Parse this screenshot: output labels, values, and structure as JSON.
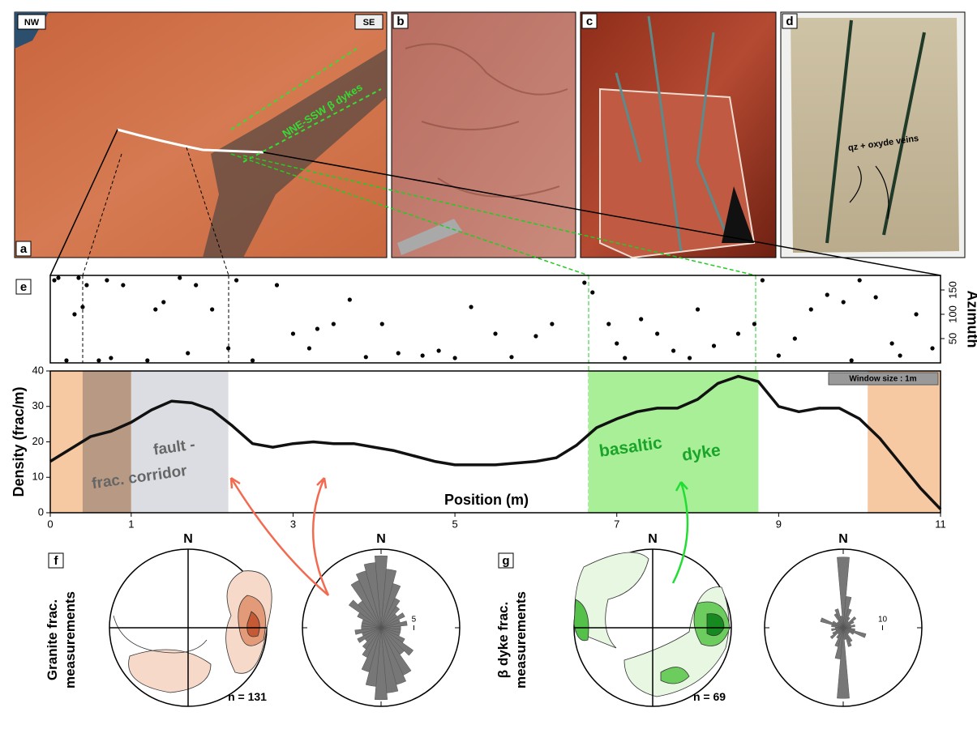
{
  "photos": {
    "a": {
      "letter": "a",
      "left_tag": "NW",
      "right_tag": "SE",
      "annotation": "NNE-SSW β dykes"
    },
    "b": {
      "letter": "b"
    },
    "c": {
      "letter": "c"
    },
    "d": {
      "letter": "d",
      "annotation": "qz + oxyde veins"
    }
  },
  "panel_e": {
    "letter": "e"
  },
  "chart_data": [
    {
      "type": "scatter",
      "ylabel": "Azimuth",
      "xlim": [
        0,
        11
      ],
      "ylim": [
        0,
        180
      ],
      "yticks": [
        50,
        100,
        150
      ],
      "color": "#000000",
      "x": [
        0.05,
        0.1,
        0.2,
        0.3,
        0.35,
        0.4,
        0.45,
        0.6,
        0.7,
        0.75,
        0.9,
        1.2,
        1.3,
        1.4,
        1.6,
        1.7,
        1.8,
        2.0,
        2.2,
        2.3,
        2.5,
        2.8,
        3.0,
        3.2,
        3.3,
        3.5,
        3.7,
        3.9,
        4.1,
        4.3,
        4.6,
        4.8,
        5.0,
        5.2,
        5.5,
        5.7,
        6.0,
        6.2,
        6.6,
        6.7,
        6.9,
        7.0,
        7.1,
        7.3,
        7.5,
        7.7,
        7.9,
        8.0,
        8.2,
        8.5,
        8.7,
        8.8,
        9.0,
        9.2,
        9.4,
        9.6,
        9.8,
        9.9,
        10.0,
        10.2,
        10.4,
        10.5,
        10.7,
        10.9
      ],
      "values": [
        170,
        175,
        5,
        100,
        175,
        115,
        160,
        5,
        170,
        10,
        160,
        5,
        110,
        125,
        175,
        20,
        160,
        110,
        30,
        170,
        5,
        160,
        60,
        30,
        70,
        80,
        130,
        12,
        80,
        20,
        15,
        25,
        10,
        115,
        60,
        12,
        55,
        80,
        165,
        145,
        80,
        40,
        10,
        90,
        60,
        25,
        10,
        110,
        35,
        60,
        80,
        170,
        15,
        50,
        110,
        140,
        125,
        5,
        170,
        135,
        40,
        15,
        100,
        30
      ]
    },
    {
      "type": "line",
      "xlabel": "Position (m)",
      "ylabel": "Density (frac/m)",
      "xlim": [
        0,
        11
      ],
      "ylim": [
        0,
        40
      ],
      "xticks": [
        0,
        1,
        3,
        5,
        7,
        9,
        11
      ],
      "yticks": [
        0,
        10,
        20,
        30,
        40
      ],
      "color": "#111111",
      "x": [
        0,
        0.25,
        0.5,
        0.75,
        1,
        1.25,
        1.5,
        1.75,
        2,
        2.25,
        2.5,
        2.75,
        3,
        3.25,
        3.5,
        3.75,
        4,
        4.25,
        4.5,
        4.75,
        5,
        5.25,
        5.5,
        5.75,
        6,
        6.25,
        6.5,
        6.75,
        7,
        7.25,
        7.5,
        7.75,
        8,
        8.25,
        8.5,
        8.75,
        9,
        9.25,
        9.5,
        9.75,
        10,
        10.25,
        10.5,
        10.75,
        11
      ],
      "values": [
        14.5,
        18,
        21.5,
        23,
        25.5,
        29,
        31.5,
        31,
        29,
        24.5,
        19.5,
        18.5,
        19.5,
        20,
        19.5,
        19.5,
        18.5,
        17.5,
        16,
        14.5,
        13.5,
        13.5,
        13.5,
        14,
        14.5,
        15.5,
        19,
        24,
        26.5,
        28.5,
        29.5,
        29.5,
        32,
        36.5,
        38.5,
        37,
        30,
        28.5,
        29.5,
        29.5,
        26.5,
        21,
        14,
        7,
        1
      ],
      "regions": [
        {
          "x": [
            0,
            1
          ],
          "color": "#f6c9a3"
        },
        {
          "x": [
            10.1,
            11
          ],
          "color": "#f6c9a3"
        },
        {
          "x": [
            0.4,
            1
          ],
          "color": "#b89a84"
        },
        {
          "x": [
            1,
            2.2
          ],
          "color": "#dcdde3"
        },
        {
          "x": [
            6.65,
            8.75
          ],
          "color": "#a8ef98"
        }
      ],
      "annotations": [
        "fault -",
        "frac. corridor",
        "basaltic",
        "dyke",
        "Window size : 1m"
      ]
    },
    {
      "type": "rose",
      "north_label": "N",
      "rlim": [
        0,
        12
      ],
      "rticks": [
        5
      ],
      "color": "#777777",
      "directions": [
        0,
        10,
        20,
        30,
        40,
        50,
        60,
        70,
        80,
        90,
        100,
        110,
        120,
        130,
        140,
        150,
        160,
        170
      ],
      "values": [
        11,
        9,
        7,
        5,
        4,
        3,
        4,
        3,
        4,
        3,
        3,
        3,
        4,
        6,
        5,
        8,
        9,
        10
      ]
    },
    {
      "type": "rose",
      "north_label": "N",
      "rlim": [
        0,
        20
      ],
      "rticks": [
        10
      ],
      "color": "#777777",
      "directions": [
        0,
        10,
        20,
        30,
        40,
        50,
        60,
        70,
        80,
        90,
        100,
        110,
        120,
        130,
        140,
        150,
        160,
        170
      ],
      "values": [
        18,
        8,
        5,
        3,
        2,
        4,
        3,
        2,
        3,
        2,
        3,
        6,
        3,
        2,
        2,
        4,
        5,
        3
      ]
    }
  ],
  "stereonets": {
    "f": {
      "letter": "f",
      "label": [
        "Granite frac.",
        "measurements"
      ],
      "north_label": "N",
      "count": "n = 131"
    },
    "g": {
      "letter": "g",
      "label": [
        "β dyke frac.",
        "measurements"
      ],
      "north_label": "N",
      "count": "n = 69"
    }
  }
}
